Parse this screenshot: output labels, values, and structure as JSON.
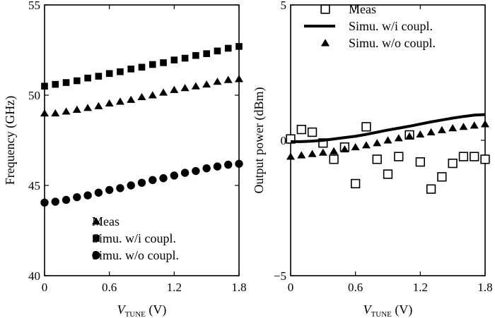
{
  "chart_data": [
    {
      "type": "scatter",
      "xlabel": {
        "italic": "V",
        "subscript": "TUNE",
        "unit": " (V)"
      },
      "ylabel": "Frequency (GHz)",
      "xlim": [
        0,
        1.8
      ],
      "ylim": [
        40,
        55
      ],
      "xticks": [
        "0",
        "0.6",
        "1.2",
        "1.8"
      ],
      "yticks": [
        "40",
        "45",
        "50",
        "55"
      ],
      "legend_position": "bottom-left",
      "series": [
        {
          "name": "Meas",
          "marker": "triangle",
          "x": [
            0,
            0.1,
            0.2,
            0.3,
            0.4,
            0.5,
            0.6,
            0.7,
            0.8,
            0.9,
            1.0,
            1.1,
            1.2,
            1.3,
            1.4,
            1.5,
            1.6,
            1.7,
            1.8
          ],
          "y": [
            49.0,
            49.0,
            49.1,
            49.2,
            49.3,
            49.4,
            49.55,
            49.65,
            49.75,
            49.9,
            50.0,
            50.15,
            50.3,
            50.4,
            50.5,
            50.6,
            50.75,
            50.85,
            50.9
          ]
        },
        {
          "name": "Simu. w/i coupl.",
          "marker": "square",
          "x": [
            0,
            0.1,
            0.2,
            0.3,
            0.4,
            0.5,
            0.6,
            0.7,
            0.8,
            0.9,
            1.0,
            1.1,
            1.2,
            1.3,
            1.4,
            1.5,
            1.6,
            1.7,
            1.8
          ],
          "y": [
            50.5,
            50.6,
            50.7,
            50.8,
            50.95,
            51.05,
            51.2,
            51.3,
            51.45,
            51.55,
            51.7,
            51.8,
            51.95,
            52.05,
            52.2,
            52.3,
            52.45,
            52.6,
            52.7
          ]
        },
        {
          "name": "Simu. w/o coupl.",
          "marker": "circle",
          "x": [
            0,
            0.1,
            0.2,
            0.3,
            0.4,
            0.5,
            0.6,
            0.7,
            0.8,
            0.9,
            1.0,
            1.1,
            1.2,
            1.3,
            1.4,
            1.5,
            1.6,
            1.7,
            1.8
          ],
          "y": [
            44.05,
            44.1,
            44.2,
            44.35,
            44.45,
            44.6,
            44.75,
            44.85,
            45.0,
            45.15,
            45.3,
            45.4,
            45.55,
            45.7,
            45.8,
            45.95,
            46.05,
            46.15,
            46.2
          ]
        }
      ]
    },
    {
      "type": "line",
      "xlabel": {
        "italic": "V",
        "subscript": "TUNE",
        "unit": " (V)"
      },
      "ylabel": "Output power (dBm)",
      "xlim": [
        0,
        1.8
      ],
      "ylim": [
        -5,
        5
      ],
      "xticks": [
        "0",
        "0.6",
        "1.2",
        "1.8"
      ],
      "yticks": [
        "−5",
        "0",
        "5"
      ],
      "legend_position": "top-right",
      "series": [
        {
          "name": "Meas",
          "marker": "open-square",
          "x": [
            0,
            0.1,
            0.2,
            0.3,
            0.4,
            0.5,
            0.6,
            0.7,
            0.8,
            0.9,
            1.0,
            1.1,
            1.2,
            1.3,
            1.4,
            1.5,
            1.6,
            1.7,
            1.8
          ],
          "y": [
            0.05,
            0.4,
            0.3,
            -0.1,
            -0.7,
            -0.25,
            -1.6,
            0.5,
            -0.7,
            -1.25,
            -0.6,
            0.2,
            -0.8,
            -1.8,
            -1.35,
            -0.85,
            -0.6,
            -0.6,
            -0.7
          ]
        },
        {
          "name": "Simu. w/i coupl.",
          "marker": "line",
          "x": [
            0,
            0.1,
            0.2,
            0.3,
            0.4,
            0.5,
            0.6,
            0.7,
            0.8,
            0.9,
            1.0,
            1.1,
            1.2,
            1.3,
            1.4,
            1.5,
            1.6,
            1.7,
            1.8
          ],
          "y": [
            -0.05,
            -0.05,
            -0.03,
            0.0,
            0.05,
            0.1,
            0.15,
            0.22,
            0.3,
            0.38,
            0.45,
            0.52,
            0.6,
            0.68,
            0.75,
            0.82,
            0.88,
            0.93,
            0.95
          ]
        },
        {
          "name": "Simu. w/o coupl.",
          "marker": "triangle",
          "x": [
            0,
            0.1,
            0.2,
            0.3,
            0.4,
            0.5,
            0.6,
            0.7,
            0.8,
            0.9,
            1.0,
            1.1,
            1.2,
            1.3,
            1.4,
            1.5,
            1.6,
            1.7,
            1.8
          ],
          "y": [
            -0.6,
            -0.55,
            -0.5,
            -0.45,
            -0.4,
            -0.33,
            -0.25,
            -0.18,
            -0.1,
            0.0,
            0.08,
            0.15,
            0.22,
            0.3,
            0.38,
            0.45,
            0.5,
            0.55,
            0.6
          ]
        }
      ]
    }
  ]
}
